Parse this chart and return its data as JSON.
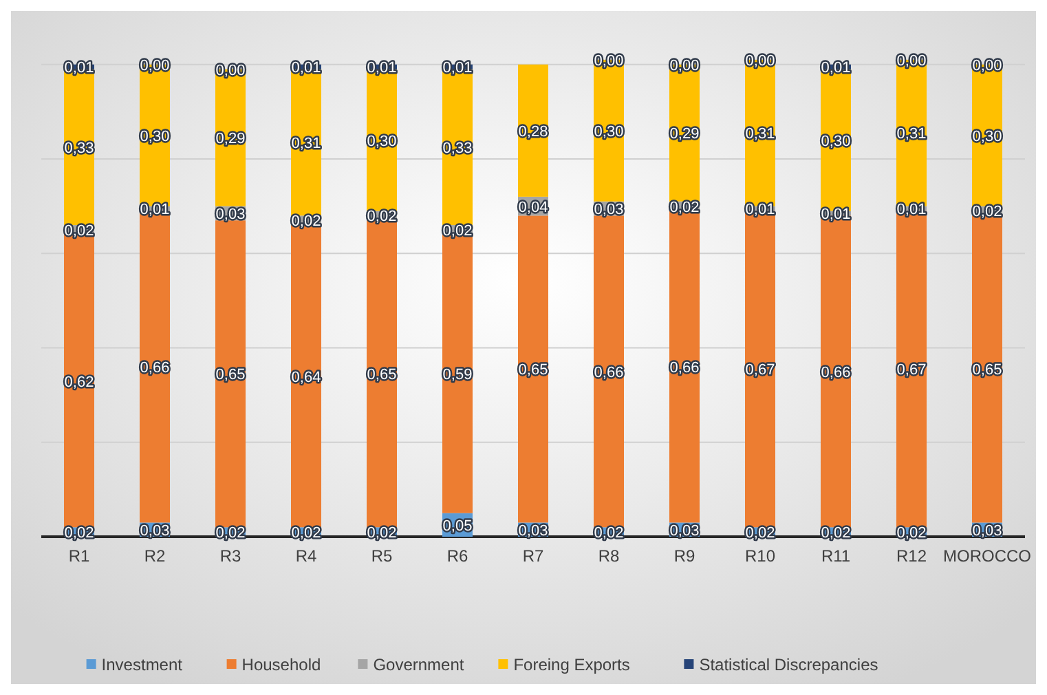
{
  "chart_data": {
    "type": "bar",
    "stacked": true,
    "categories": [
      "R1",
      "R2",
      "R3",
      "R4",
      "R5",
      "R6",
      "R7",
      "R8",
      "R9",
      "R10",
      "R11",
      "R12",
      "MOROCCO"
    ],
    "ylim": [
      0,
      1.02
    ],
    "yticks": [
      {
        "value": 0,
        "label": null
      },
      {
        "value": 0.2,
        "label": null
      },
      {
        "value": 0.4,
        "label": null
      },
      {
        "value": 0.6,
        "label": null
      },
      {
        "value": 0.8,
        "label": null
      },
      {
        "value": 1,
        "label": null
      }
    ],
    "grid": "y",
    "tick_labels": "x",
    "legend": "bottom",
    "series": [
      {
        "name": "Investment",
        "color": "#5b9bd5",
        "values": [
          0.02,
          0.03,
          0.02,
          0.02,
          0.02,
          0.05,
          0.03,
          0.02,
          0.03,
          0.02,
          0.02,
          0.02,
          0.03
        ],
        "value_labels": [
          "0,02",
          "0,03",
          "0,02",
          "0,02",
          "0,02",
          "0,05",
          "0,03",
          "0,02",
          "0,03",
          "0,02",
          "0,02",
          "0,02",
          "0,03"
        ]
      },
      {
        "name": "Household",
        "color": "#ed7d31",
        "values": [
          0.62,
          0.66,
          0.65,
          0.64,
          0.65,
          0.59,
          0.65,
          0.66,
          0.66,
          0.67,
          0.66,
          0.67,
          0.65
        ],
        "value_labels": [
          "0,62",
          "0,66",
          "0,65",
          "0,64",
          "0,65",
          "0,59",
          "0,65",
          "0,66",
          "0,66",
          "0,67",
          "0,66",
          "0,67",
          "0,65"
        ]
      },
      {
        "name": "Government",
        "color": "#a5a5a5",
        "values": [
          0.02,
          0.01,
          0.03,
          0.02,
          0.02,
          0.02,
          0.04,
          0.03,
          0.02,
          0.01,
          0.01,
          0.01,
          0.02
        ],
        "value_labels": [
          "0,02",
          "0,01",
          "0,03",
          "0,02",
          "0,02",
          "0,02",
          "0,04",
          "0,03",
          "0,02",
          "0,01",
          "0,01",
          "0,01",
          "0,02"
        ]
      },
      {
        "name": "Foreing Exports",
        "color": "#ffc000",
        "values": [
          0.33,
          0.3,
          0.29,
          0.31,
          0.3,
          0.33,
          0.28,
          0.3,
          0.29,
          0.31,
          0.3,
          0.31,
          0.3
        ],
        "value_labels": [
          "0,33",
          "0,30",
          "0,29",
          "0,31",
          "0,30",
          "0,33",
          "0,28",
          "0,30",
          "0,29",
          "0,31",
          "0,30",
          "0,31",
          "0,30"
        ]
      },
      {
        "name": "Statistical Discrepancies",
        "color": "#264478",
        "values": [
          0.01,
          0.0,
          0.0,
          0.01,
          0.01,
          0.01,
          0.0,
          0.0,
          0.0,
          0.0,
          0.01,
          0.0,
          0.0
        ],
        "value_labels": [
          "0,01",
          "0,00",
          "0,00",
          "0,01",
          "0,01",
          "0,01",
          null,
          "0,00",
          "0,00",
          "0,00",
          "0,01",
          "0,00",
          "0,00"
        ]
      }
    ]
  }
}
